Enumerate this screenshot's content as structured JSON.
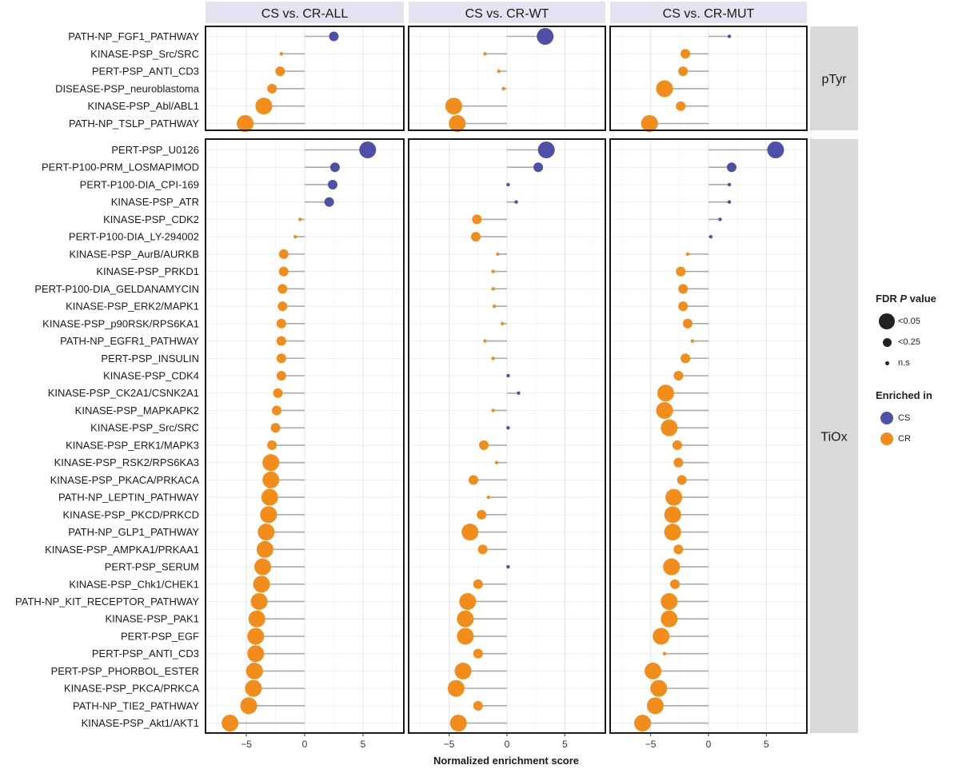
{
  "chart_data": {
    "type": "lollipop",
    "xlabel": "Normalized enrichment score",
    "xlim": [
      -8.5,
      8.5
    ],
    "xticks": [
      -5,
      0,
      5
    ],
    "xtick_labels": [
      "−5",
      "0",
      "5"
    ],
    "columns": [
      "CS vs. CR-ALL",
      "CS vs. CR-WT",
      "CS vs. CR-MUT"
    ],
    "colors": {
      "CS": "#4e4fa6",
      "CR": "#f28c1b"
    },
    "legend": {
      "size_title_prefix": "FDR ",
      "size_title_italic": "P",
      "size_title_suffix": " value",
      "size_items": [
        {
          "label": "<0.05",
          "level": 3
        },
        {
          "label": "<0.25",
          "level": 2
        },
        {
          "label": "n.s",
          "level": 1
        }
      ],
      "color_title": "Enriched in",
      "color_items": [
        {
          "label": "CS",
          "key": "CS"
        },
        {
          "label": "CR",
          "key": "CR"
        }
      ]
    },
    "rows": [
      {
        "label": "pTyr",
        "categories": [
          "PATH-NP_FGF1_PATHWAY",
          "KINASE-PSP_Src/SRC",
          "PERT-PSP_ANTI_CD3",
          "DISEASE-PSP_neuroblastoma",
          "KINASE-PSP_Abl/ABL1",
          "PATH-NP_TSLP_PATHWAY"
        ],
        "series": [
          {
            "name": "CS vs. CR-ALL",
            "values": [
              2.5,
              -2.0,
              -2.1,
              -2.8,
              -3.5,
              -5.1
            ],
            "fdr_level": [
              2,
              1,
              2,
              2,
              3,
              3
            ]
          },
          {
            "name": "CS vs. CR-WT",
            "values": [
              3.3,
              -1.9,
              -0.7,
              -0.3,
              -4.6,
              -4.3
            ],
            "fdr_level": [
              3,
              1,
              1,
              1,
              3,
              3
            ]
          },
          {
            "name": "CS vs. CR-MUT",
            "values": [
              1.8,
              -2.0,
              -2.2,
              -3.8,
              -2.4,
              -5.1
            ],
            "fdr_level": [
              1,
              2,
              2,
              3,
              2,
              3
            ]
          }
        ]
      },
      {
        "label": "TiOx",
        "categories": [
          "PERT-PSP_U0126",
          "PERT-P100-PRM_LOSMAPIMOD",
          "PERT-P100-DIA_CPI-169",
          "KINASE-PSP_ATR",
          "KINASE-PSP_CDK2",
          "PERT-P100-DIA_LY-294002",
          "KINASE-PSP_AurB/AURKB",
          "KINASE-PSP_PRKD1",
          "PERT-P100-DIA_GELDANAMYCIN",
          "KINASE-PSP_ERK2/MAPK1",
          "KINASE-PSP_p90RSK/RPS6KA1",
          "PATH-NP_EGFR1_PATHWAY",
          "PERT-PSP_INSULIN",
          "KINASE-PSP_CDK4",
          "KINASE-PSP_CK2A1/CSNK2A1",
          "KINASE-PSP_MAPKAPK2",
          "KINASE-PSP_Src/SRC",
          "KINASE-PSP_ERK1/MAPK3",
          "KINASE-PSP_RSK2/RPS6KA3",
          "KINASE-PSP_PKACA/PRKACA",
          "PATH-NP_LEPTIN_PATHWAY",
          "KINASE-PSP_PKCD/PRKCD",
          "PATH-NP_GLP1_PATHWAY",
          "KINASE-PSP_AMPKA1/PRKAA1",
          "PERT-PSP_SERUM",
          "KINASE-PSP_Chk1/CHEK1",
          "PATH-NP_KIT_RECEPTOR_PATHWAY",
          "KINASE-PSP_PAK1",
          "PERT-PSP_EGF",
          "PERT-PSP_ANTI_CD3",
          "PERT-PSP_PHORBOL_ESTER",
          "KINASE-PSP_PKCA/PRKCA",
          "PATH-NP_TIE2_PATHWAY",
          "KINASE-PSP_Akt1/AKT1"
        ],
        "series": [
          {
            "name": "CS vs. CR-ALL",
            "values": [
              5.4,
              2.6,
              2.4,
              2.1,
              -0.4,
              -0.8,
              -1.8,
              -1.8,
              -1.9,
              -1.9,
              -2.0,
              -2.0,
              -2.0,
              -2.0,
              -2.3,
              -2.4,
              -2.5,
              -2.8,
              -2.9,
              -2.9,
              -3.0,
              -3.1,
              -3.3,
              -3.4,
              -3.6,
              -3.7,
              -3.9,
              -4.1,
              -4.2,
              -4.2,
              -4.3,
              -4.4,
              -4.8,
              -6.4
            ],
            "fdr_level": [
              3,
              2,
              2,
              2,
              1,
              1,
              2,
              2,
              2,
              2,
              2,
              2,
              2,
              2,
              2,
              2,
              2,
              2,
              3,
              3,
              3,
              3,
              3,
              3,
              3,
              3,
              3,
              3,
              3,
              3,
              3,
              3,
              3,
              3
            ]
          },
          {
            "name": "CS vs. CR-WT",
            "values": [
              3.4,
              2.7,
              0.1,
              0.8,
              -2.6,
              -2.7,
              -0.8,
              -1.2,
              -1.2,
              -1.1,
              -0.4,
              -1.9,
              -1.2,
              0.1,
              1.0,
              -1.2,
              0.1,
              -2.0,
              -0.9,
              -2.9,
              -1.6,
              -2.2,
              -3.2,
              -2.1,
              0.1,
              -2.5,
              -3.4,
              -3.6,
              -3.6,
              -2.5,
              -3.8,
              -4.4,
              -2.5,
              -4.2
            ],
            "fdr_level": [
              3,
              2,
              1,
              1,
              2,
              2,
              1,
              1,
              1,
              1,
              1,
              1,
              1,
              1,
              1,
              1,
              1,
              2,
              1,
              2,
              1,
              2,
              3,
              2,
              1,
              2,
              3,
              3,
              3,
              2,
              3,
              3,
              2,
              3
            ]
          },
          {
            "name": "CS vs. CR-MUT",
            "values": [
              5.8,
              2.0,
              1.8,
              1.8,
              1.0,
              0.2,
              -1.8,
              -2.4,
              -2.2,
              -2.2,
              -1.8,
              -1.4,
              -2.0,
              -2.6,
              -3.7,
              -3.8,
              -3.4,
              -2.7,
              -2.6,
              -2.3,
              -3.0,
              -3.1,
              -3.1,
              -2.6,
              -3.2,
              -2.9,
              -3.4,
              -3.4,
              -4.1,
              -3.8,
              -4.8,
              -4.3,
              -4.6,
              -5.7
            ],
            "fdr_level": [
              3,
              2,
              1,
              1,
              1,
              1,
              1,
              2,
              2,
              2,
              2,
              1,
              2,
              2,
              3,
              3,
              3,
              2,
              2,
              2,
              3,
              3,
              3,
              2,
              3,
              2,
              3,
              3,
              3,
              1,
              3,
              3,
              3,
              3
            ]
          }
        ]
      }
    ]
  }
}
